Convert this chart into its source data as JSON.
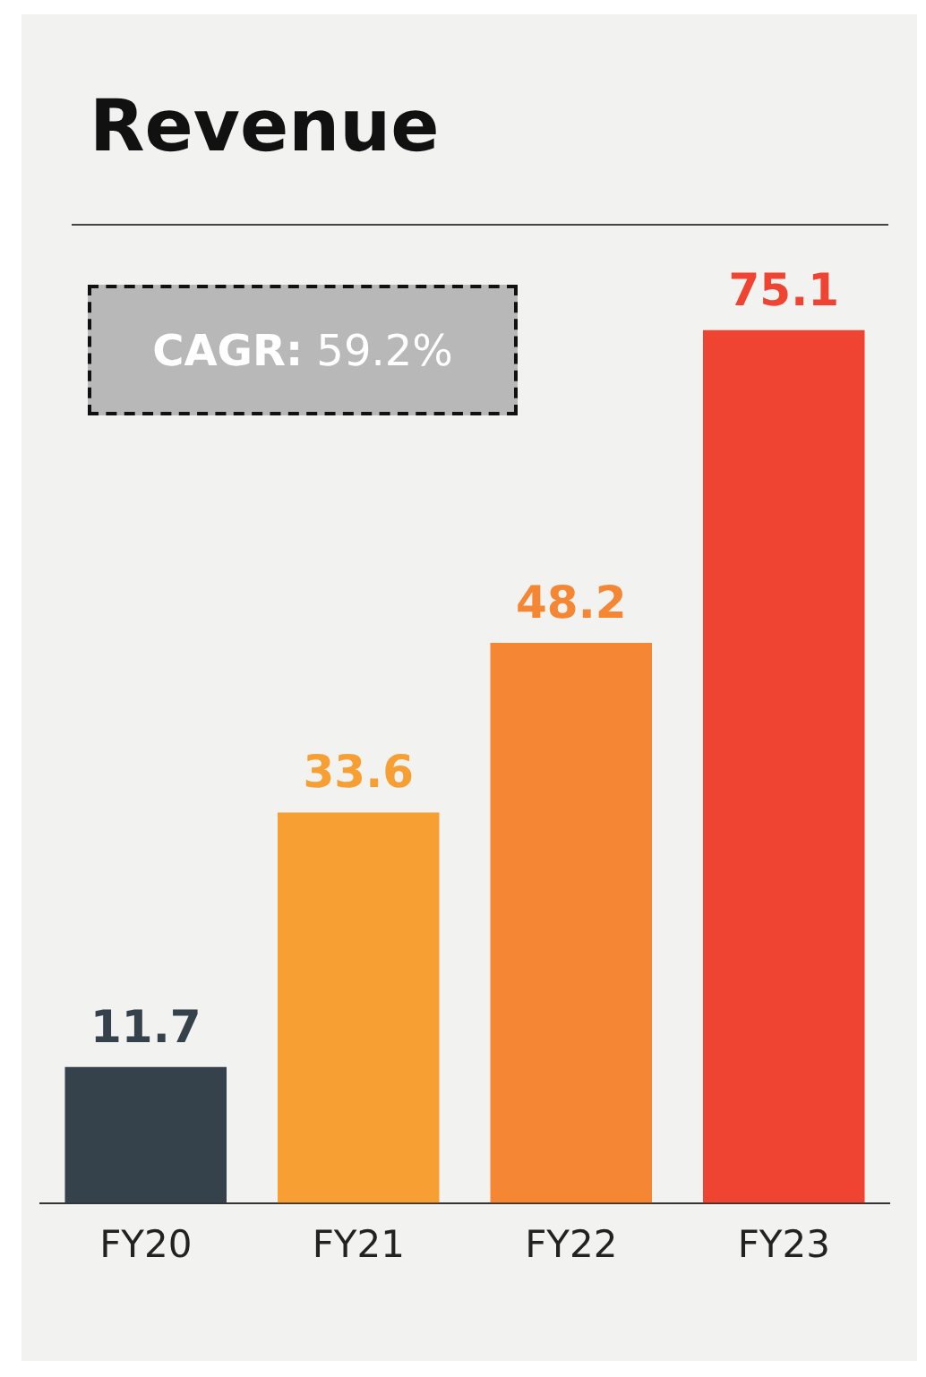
{
  "chart_data": {
    "type": "bar",
    "title": "Revenue",
    "categories": [
      "FY20",
      "FY21",
      "FY22",
      "FY23"
    ],
    "values": [
      11.7,
      33.6,
      48.2,
      75.1
    ],
    "colors": [
      "#36424b",
      "#f89f33",
      "#f58634",
      "#ef4431"
    ],
    "data_labels": true,
    "annotations": [
      "CAGR: 59.2%"
    ]
  }
}
